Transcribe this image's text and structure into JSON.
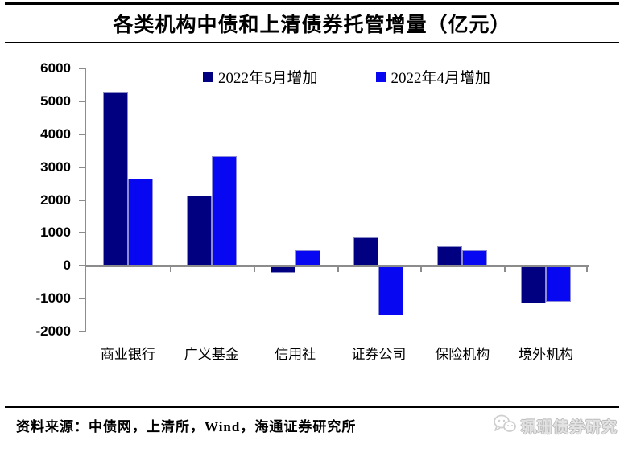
{
  "title": "各类机构中债和上清债券托管增量（亿元）",
  "footer": {
    "source": "资料来源：中债网，上清所，Wind，海通证券研究所",
    "watermark": "珮珊债券研究",
    "watermark_icon": "wechat-chat-bubbles-icon"
  },
  "colors": {
    "series_may": "#000080",
    "series_apr": "#0707f2",
    "axis": "#8c8c8c"
  },
  "chart_data": {
    "type": "bar",
    "title": "各类机构中债和上清债券托管增量（亿元）",
    "unit": "亿元",
    "categories": [
      "商业银行",
      "广义基金",
      "信用社",
      "证券公司",
      "保险机构",
      "境外机构"
    ],
    "series": [
      {
        "name": "2022年5月增加",
        "color": "#000080",
        "values": [
          5300,
          2130,
          -210,
          860,
          600,
          -1140
        ]
      },
      {
        "name": "2022年4月增加",
        "color": "#0707f2",
        "values": [
          2650,
          3330,
          470,
          -1520,
          470,
          -1100
        ]
      }
    ],
    "ylim": [
      -2000,
      6000
    ],
    "yticks": [
      6000,
      5000,
      4000,
      3000,
      2000,
      1000,
      0,
      -1000,
      -2000
    ],
    "grid": false,
    "legend_position": "top-center",
    "xlabel": "",
    "ylabel": ""
  }
}
